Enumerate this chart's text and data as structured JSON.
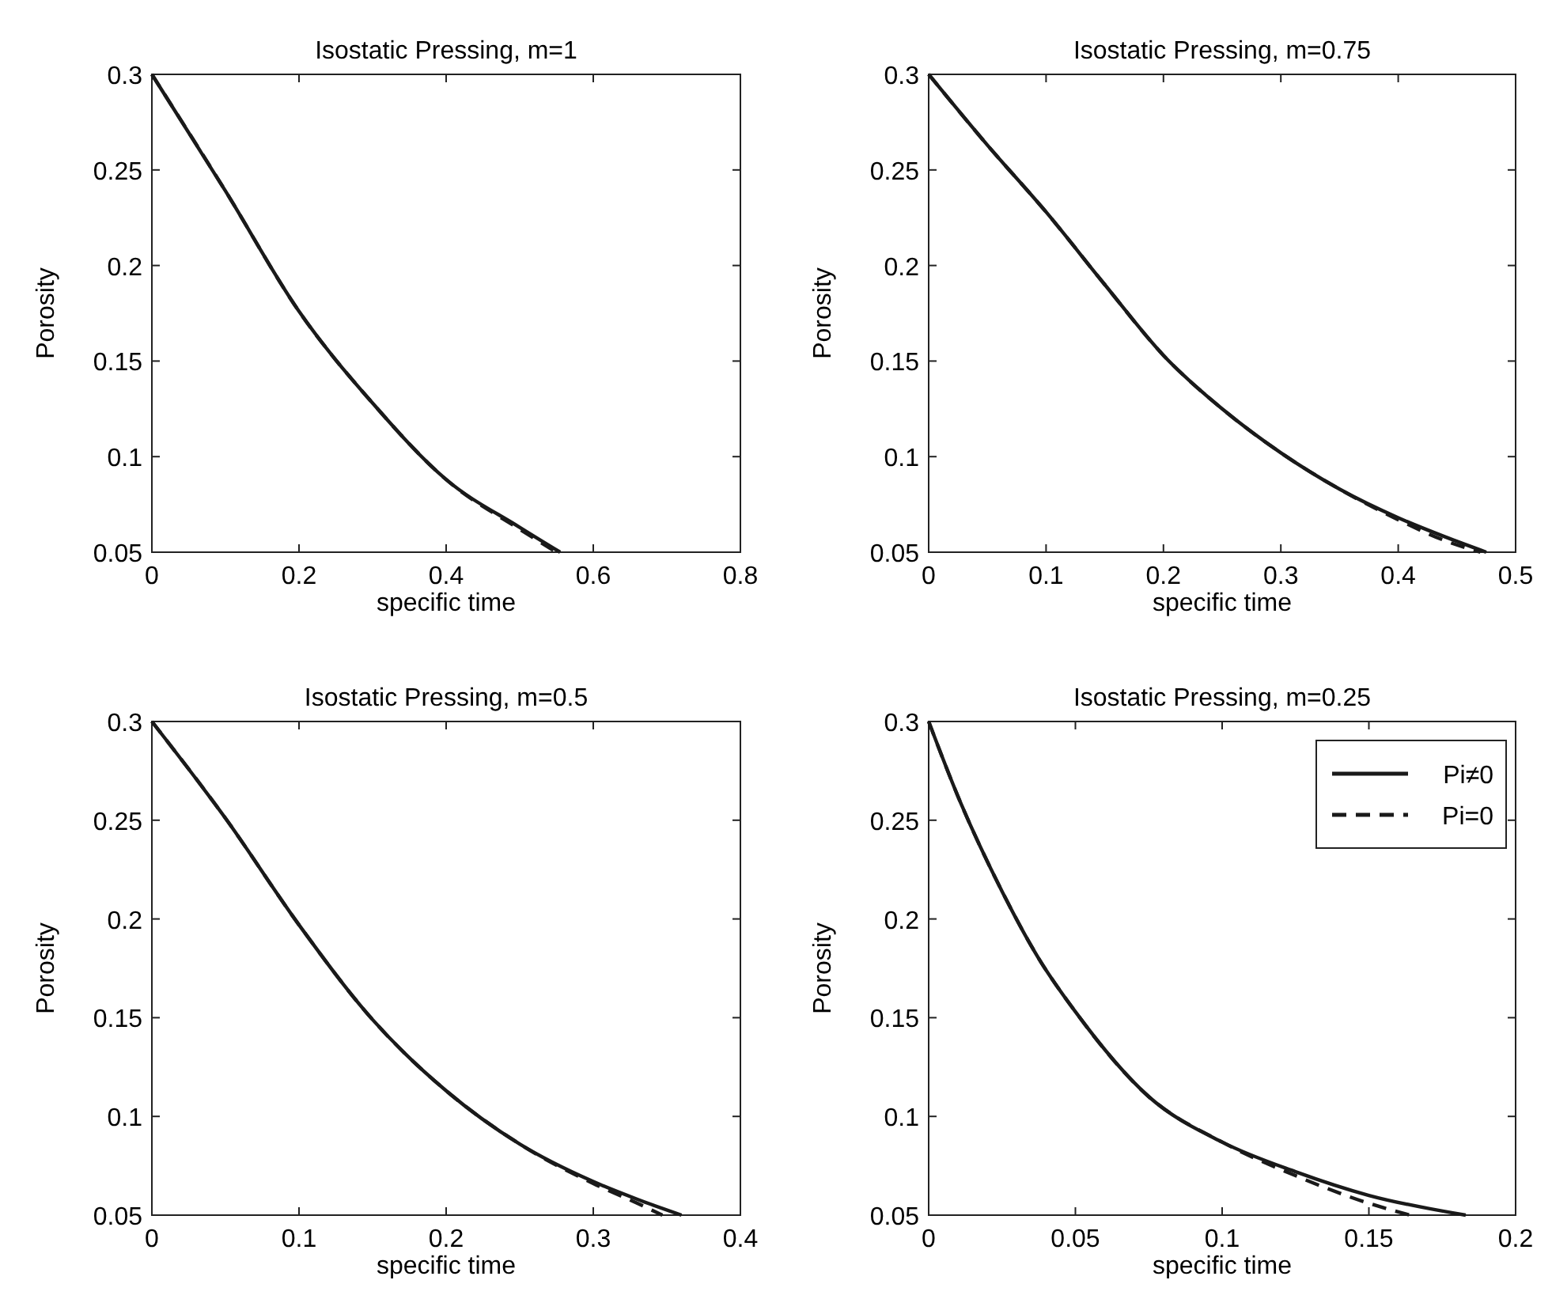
{
  "chart_data": [
    {
      "type": "line",
      "title": "Isostatic Pressing, m=1",
      "xlabel": "specific time",
      "ylabel": "Porosity",
      "xlim": [
        0,
        0.8
      ],
      "xticks": [
        0,
        0.2,
        0.4,
        0.6,
        0.8
      ],
      "ylim": [
        0.05,
        0.3
      ],
      "yticks": [
        0.05,
        0.1,
        0.15,
        0.2,
        0.25,
        0.3
      ],
      "grid": false,
      "legend": false,
      "series": [
        {
          "color": "#1a1a1a",
          "line_style": "solid",
          "x": [
            0,
            0.1,
            0.2,
            0.3,
            0.4,
            0.5,
            0.555
          ],
          "values": [
            0.3,
            0.239,
            0.176,
            0.128,
            0.088,
            0.063,
            0.05
          ]
        },
        {
          "color": "#1a1a1a",
          "line_style": "dashed",
          "x": [
            0,
            0.1,
            0.2,
            0.3,
            0.4,
            0.5,
            0.55
          ],
          "values": [
            0.3,
            0.239,
            0.176,
            0.128,
            0.088,
            0.062,
            0.05
          ]
        }
      ]
    },
    {
      "type": "line",
      "title": "Isostatic Pressing, m=0.75",
      "xlabel": "specific time",
      "ylabel": "Porosity",
      "xlim": [
        0,
        0.5
      ],
      "xticks": [
        0,
        0.1,
        0.2,
        0.3,
        0.4,
        0.5
      ],
      "ylim": [
        0.05,
        0.3
      ],
      "yticks": [
        0.05,
        0.1,
        0.15,
        0.2,
        0.25,
        0.3
      ],
      "grid": false,
      "legend": false,
      "series": [
        {
          "color": "#1a1a1a",
          "line_style": "solid",
          "x": [
            0,
            0.05,
            0.1,
            0.15,
            0.2,
            0.25,
            0.3,
            0.35,
            0.4,
            0.44,
            0.475
          ],
          "values": [
            0.3,
            0.263,
            0.228,
            0.19,
            0.153,
            0.125,
            0.102,
            0.083,
            0.068,
            0.058,
            0.05
          ]
        },
        {
          "color": "#1a1a1a",
          "line_style": "dashed",
          "x": [
            0,
            0.05,
            0.1,
            0.15,
            0.2,
            0.25,
            0.3,
            0.35,
            0.4,
            0.44,
            0.47
          ],
          "values": [
            0.3,
            0.263,
            0.228,
            0.19,
            0.153,
            0.125,
            0.102,
            0.083,
            0.067,
            0.056,
            0.05
          ]
        }
      ]
    },
    {
      "type": "line",
      "title": "Isostatic Pressing, m=0.5",
      "xlabel": "specific time",
      "ylabel": "Porosity",
      "xlim": [
        0,
        0.4
      ],
      "xticks": [
        0,
        0.1,
        0.2,
        0.3,
        0.4
      ],
      "ylim": [
        0.05,
        0.3
      ],
      "yticks": [
        0.05,
        0.1,
        0.15,
        0.2,
        0.25,
        0.3
      ],
      "grid": false,
      "legend": false,
      "series": [
        {
          "color": "#1a1a1a",
          "line_style": "solid",
          "x": [
            0,
            0.05,
            0.1,
            0.15,
            0.2,
            0.25,
            0.3,
            0.33,
            0.36
          ],
          "values": [
            0.3,
            0.251,
            0.197,
            0.149,
            0.113,
            0.086,
            0.067,
            0.058,
            0.05
          ]
        },
        {
          "color": "#1a1a1a",
          "line_style": "dashed",
          "x": [
            0,
            0.05,
            0.1,
            0.15,
            0.2,
            0.25,
            0.3,
            0.33,
            0.347
          ],
          "values": [
            0.3,
            0.251,
            0.197,
            0.149,
            0.113,
            0.086,
            0.066,
            0.056,
            0.05
          ]
        }
      ]
    },
    {
      "type": "line",
      "title": "Isostatic Pressing, m=0.25",
      "xlabel": "specific time",
      "ylabel": "Porosity",
      "xlim": [
        0,
        0.2
      ],
      "xticks": [
        0,
        0.05,
        0.1,
        0.15,
        0.2
      ],
      "ylim": [
        0.05,
        0.3
      ],
      "yticks": [
        0.05,
        0.1,
        0.15,
        0.2,
        0.25,
        0.3
      ],
      "grid": false,
      "legend": "top right",
      "series": [
        {
          "name": "Pi≠0",
          "color": "#1a1a1a",
          "line_style": "solid",
          "x": [
            0,
            0.01,
            0.025,
            0.0375,
            0.05,
            0.075,
            0.1,
            0.125,
            0.15,
            0.183
          ],
          "values": [
            0.3,
            0.262,
            0.214,
            0.18,
            0.153,
            0.11,
            0.087,
            0.072,
            0.06,
            0.05
          ]
        },
        {
          "name": "Pi=0",
          "color": "#1a1a1a",
          "line_style": "dashed",
          "x": [
            0,
            0.01,
            0.025,
            0.0375,
            0.05,
            0.075,
            0.1,
            0.125,
            0.15,
            0.164
          ],
          "values": [
            0.3,
            0.262,
            0.214,
            0.18,
            0.153,
            0.11,
            0.087,
            0.07,
            0.056,
            0.05
          ]
        }
      ]
    }
  ]
}
